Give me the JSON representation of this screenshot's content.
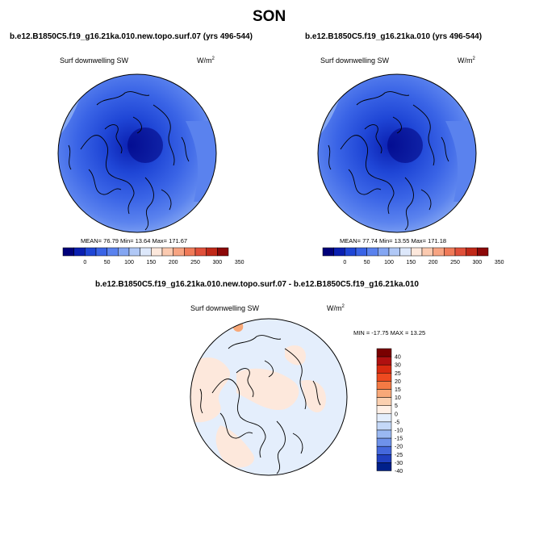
{
  "season": "SON",
  "panels": [
    {
      "case": "b.e12.B1850C5.f19_g16.21ka.010.new.topo.surf.07 (yrs 496-544)",
      "variable": "Surf downwelling SW",
      "units_base": "W/m",
      "units_exp": "2",
      "stats": {
        "mean_label": "MEAN=",
        "mean": "76.79",
        "min_label": "Min=",
        "min": "13.64",
        "max_label": "Max=",
        "max": "171.67"
      }
    },
    {
      "case": "b.e12.B1850C5.f19_g16.21ka.010 (yrs 496-544)",
      "variable": "Surf downwelling SW",
      "units_base": "W/m",
      "units_exp": "2",
      "stats": {
        "mean_label": "MEAN=",
        "mean": "77.74",
        "min_label": "Min=",
        "min": "13.55",
        "max_label": "Max=",
        "max": "171.18"
      }
    }
  ],
  "abs_colorbar": {
    "ticks": [
      "0",
      "50",
      "100",
      "150",
      "200",
      "250",
      "300",
      "350"
    ],
    "colors": [
      "#00007a",
      "#0a1fb0",
      "#1f46d6",
      "#3a64e6",
      "#5a82ee",
      "#84a6f2",
      "#b0c8f6",
      "#dde8fb",
      "#fde8dc",
      "#fbcab0",
      "#f7a482",
      "#f07a58",
      "#e0503a",
      "#c02818",
      "#8c0808"
    ]
  },
  "diff_panel": {
    "title": "b.e12.B1850C5.f19_g16.21ka.010.new.topo.surf.07 - b.e12.B1850C5.f19_g16.21ka.010",
    "variable": "Surf downwelling SW",
    "units_base": "W/m",
    "units_exp": "2",
    "minmax": "MIN = -17.75 MAX =  13.25"
  },
  "diff_colorbar": {
    "labels": [
      "40",
      "30",
      "25",
      "20",
      "15",
      "10",
      "5",
      "0",
      "-5",
      "-10",
      "-15",
      "-20",
      "-25",
      "-30",
      "-40"
    ],
    "colors": [
      "#7a0000",
      "#b01010",
      "#d82a10",
      "#ee4a20",
      "#f47a44",
      "#f8a878",
      "#fbd0b0",
      "#fff0e6",
      "#e4eefc",
      "#c4d8f8",
      "#9ab8f2",
      "#6e92ea",
      "#4468dc",
      "#2040c0",
      "#00208a"
    ]
  }
}
